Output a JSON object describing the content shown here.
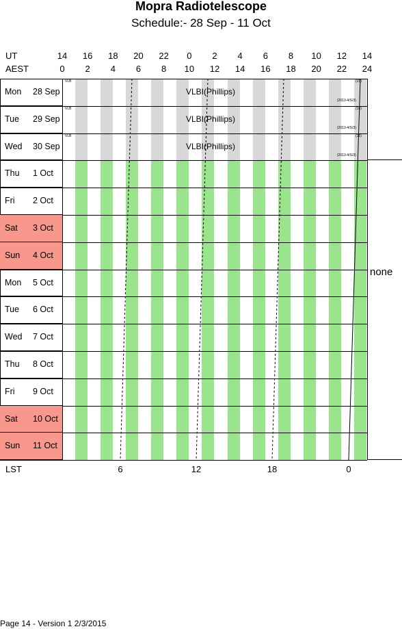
{
  "title": "Mopra Radiotelescope",
  "subtitle": "Schedule:- 28 Sep - 11 Oct",
  "header": {
    "ut_label": "UT",
    "aest_label": "AEST",
    "ut_ticks": [
      "14",
      "16",
      "18",
      "20",
      "22",
      "0",
      "2",
      "4",
      "6",
      "8",
      "10",
      "12",
      "14"
    ],
    "aest_ticks": [
      "0",
      "2",
      "4",
      "6",
      "8",
      "10",
      "12",
      "14",
      "16",
      "18",
      "20",
      "22",
      "24"
    ]
  },
  "days": [
    {
      "name": "Mon",
      "date": "28 Sep",
      "weekend": false,
      "booked": true
    },
    {
      "name": "Tue",
      "date": "29 Sep",
      "weekend": false,
      "booked": true
    },
    {
      "name": "Wed",
      "date": "30 Sep",
      "weekend": false,
      "booked": true
    },
    {
      "name": "Thu",
      "date": "1  Oct",
      "weekend": false,
      "booked": false
    },
    {
      "name": "Fri",
      "date": "2  Oct",
      "weekend": false,
      "booked": false
    },
    {
      "name": "Sat",
      "date": "3  Oct",
      "weekend": true,
      "booked": false
    },
    {
      "name": "Sun",
      "date": "4  Oct",
      "weekend": true,
      "booked": false
    },
    {
      "name": "Mon",
      "date": "5  Oct",
      "weekend": false,
      "booked": false
    },
    {
      "name": "Tue",
      "date": "6  Oct",
      "weekend": false,
      "booked": false
    },
    {
      "name": "Wed",
      "date": "7  Oct",
      "weekend": false,
      "booked": false
    },
    {
      "name": "Thu",
      "date": "8  Oct",
      "weekend": false,
      "booked": false
    },
    {
      "name": "Fri",
      "date": "9  Oct",
      "weekend": false,
      "booked": false
    },
    {
      "name": "Sat",
      "date": "10 Oct",
      "weekend": true,
      "booked": false
    },
    {
      "name": "Sun",
      "date": "11 Oct",
      "weekend": true,
      "booked": false
    }
  ],
  "booking": {
    "label": "VLBI(Phillips)",
    "tag": "VLB",
    "right_tag": "(15)",
    "code": "(2013-4/S/3)"
  },
  "none_label": "none",
  "lst": {
    "label": "LST",
    "ticks": [
      "6",
      "12",
      "18",
      "0"
    ]
  },
  "footer": "Page 14 - Version 1  2/3/2015",
  "colors": {
    "free": "#99e48c",
    "booked": "#d8d8d8",
    "weekend": "#f8978c"
  }
}
